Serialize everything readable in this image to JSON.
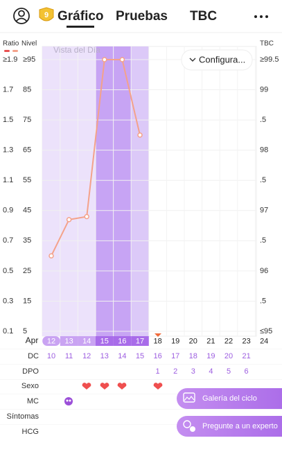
{
  "nav": {
    "badge": "9",
    "tabs": [
      "Gráfico",
      "Pruebas",
      "TBC"
    ]
  },
  "chart_data": {
    "type": "line",
    "ratio_label": "Ratio",
    "y_label": "Nivel",
    "y2_label": "TBC",
    "annotation": "Vista del Día",
    "settings_button": "Configura...",
    "month": "Apr",
    "categories": [
      "12",
      "13",
      "14",
      "15",
      "16",
      "17",
      "18",
      "19",
      "20",
      "21",
      "22",
      "23",
      "24"
    ],
    "series": [
      {
        "color": "#f4a28a",
        "values": [
          30,
          42,
          43,
          95,
          95,
          70,
          null,
          null,
          null,
          null,
          null,
          null,
          null
        ]
      }
    ],
    "ylim": [
      5,
      95
    ],
    "yticks": [
      {
        "value": 95,
        "label": "≥95"
      },
      85,
      75,
      65,
      55,
      45,
      35,
      25,
      15,
      5
    ],
    "ratio_lim": [
      0.1,
      1.9
    ],
    "ratio_ticks": [
      {
        "value": 1.9,
        "label": "≥1.9"
      },
      1.7,
      1.5,
      1.3,
      1.1,
      0.9,
      0.7,
      0.5,
      0.3,
      0.1
    ],
    "y2lim": [
      95,
      99.5
    ],
    "y2ticks": [
      {
        "value": 99.5,
        "label": "≥99.5"
      },
      99,
      {
        "value": 98.5,
        "label": ".5"
      },
      98,
      {
        "value": 97.5,
        "label": ".5"
      },
      97,
      {
        "value": 96.5,
        "label": ".5"
      },
      96,
      {
        "value": 95.5,
        "label": ".5"
      },
      {
        "value": 95,
        "label": "≤95"
      }
    ],
    "grid": true
  },
  "rows": [
    {
      "label": "DC",
      "values": [
        10,
        11,
        12,
        13,
        14,
        15,
        16,
        17,
        18,
        19,
        20,
        21,
        null
      ]
    },
    {
      "label": "DPO",
      "values": [
        null,
        null,
        null,
        null,
        null,
        null,
        1,
        2,
        3,
        4,
        5,
        6,
        null
      ]
    },
    {
      "label": "Sexo"
    },
    {
      "label": "MC"
    },
    {
      "label": "Síntomas"
    },
    {
      "label": "HCG"
    }
  ],
  "buttons": [
    "Galería del ciclo",
    "Pregunte a un experto"
  ]
}
